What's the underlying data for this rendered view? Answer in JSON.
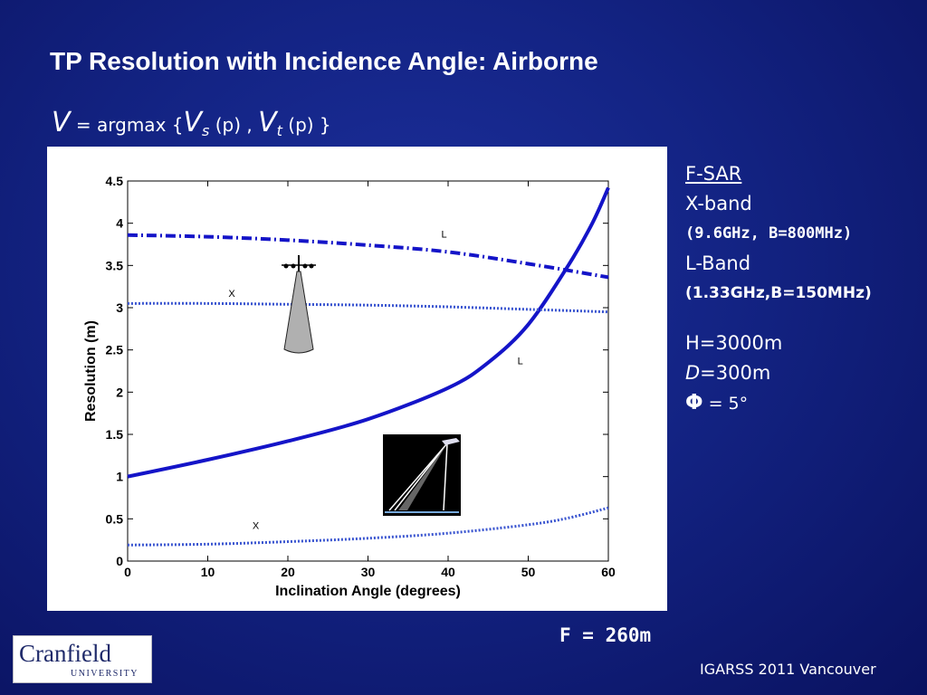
{
  "slide": {
    "title": "TP Resolution with Incidence Angle: Airborne",
    "footer": "IGARSS 2011 Vancouver",
    "f_note": "F = 260m",
    "logo": {
      "line1": "Cranfield",
      "line2": "UNIVERSITY"
    }
  },
  "formula": {
    "v": "V",
    "eq": " = argmax {",
    "vs": "V",
    "s_sub": "s",
    "p1": " (p) , ",
    "vt": "V",
    "t_sub": "t",
    "p2": " (p) }"
  },
  "info": {
    "system": "F-SAR",
    "x_band": "X-band",
    "x_params": "(9.6GHz, B=800MHz)",
    "l_band": "L-Band",
    "l_params": "(1.33GHz,B=150MHz)",
    "h": "H=3000m",
    "d_letter": "D",
    "d_rest": "=300m",
    "phi_symbol": "Φ",
    "phi_value": " = 5°"
  },
  "chart_data": {
    "type": "line",
    "xlabel": "Inclination Angle (degrees)",
    "ylabel": "Resolution (m)",
    "xlim": [
      0,
      60
    ],
    "ylim": [
      0,
      4.5
    ],
    "x_ticks": [
      0,
      10,
      20,
      30,
      40,
      50,
      60
    ],
    "y_ticks": [
      0,
      0.5,
      1,
      1.5,
      2,
      2.5,
      3,
      3.5,
      4,
      4.5
    ],
    "grid": false,
    "series": [
      {
        "style": "solid",
        "color": "#1414c8",
        "x": [
          0,
          10,
          20,
          30,
          40,
          45,
          50,
          55,
          58,
          60
        ],
        "y": [
          1.0,
          1.2,
          1.42,
          1.68,
          2.05,
          2.35,
          2.8,
          3.5,
          4.0,
          4.42
        ]
      },
      {
        "style": "dashdot",
        "color": "#1414c8",
        "x": [
          0,
          10,
          20,
          30,
          40,
          50,
          60
        ],
        "y": [
          3.86,
          3.84,
          3.8,
          3.74,
          3.66,
          3.52,
          3.36
        ]
      },
      {
        "style": "dotted",
        "color": "#3a55d0",
        "x": [
          0,
          10,
          20,
          30,
          40,
          50,
          60
        ],
        "y": [
          3.05,
          3.05,
          3.04,
          3.03,
          3.01,
          2.98,
          2.95
        ]
      },
      {
        "style": "dotted",
        "color": "#3a55d0",
        "x": [
          0,
          10,
          20,
          30,
          40,
          50,
          55,
          60
        ],
        "y": [
          0.19,
          0.2,
          0.23,
          0.27,
          0.33,
          0.43,
          0.51,
          0.63
        ]
      }
    ],
    "annotations": [
      {
        "text": "L",
        "x": 39.5,
        "y": 3.83
      },
      {
        "text": "X",
        "x": 13,
        "y": 3.13
      },
      {
        "text": "L",
        "x": 49,
        "y": 2.33
      },
      {
        "text": "X",
        "x": 16,
        "y": 0.38
      }
    ]
  }
}
